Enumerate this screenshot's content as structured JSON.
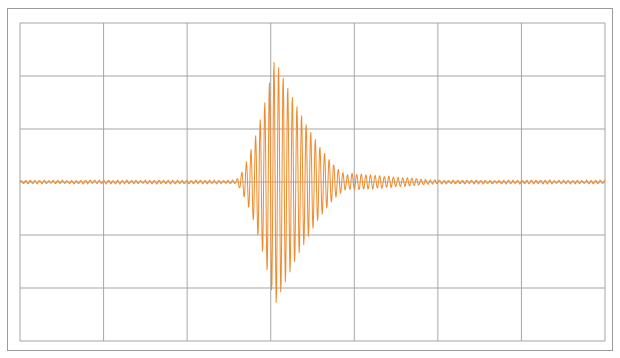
{
  "chart_data": {
    "type": "line",
    "title": "",
    "xlabel": "",
    "ylabel": "",
    "xlim": [
      0,
      7
    ],
    "ylim": [
      -3,
      3
    ],
    "grid": true,
    "x_gridlines": [
      0,
      1,
      2,
      3,
      4,
      5,
      6,
      7
    ],
    "y_gridlines": [
      -3,
      -2,
      -1,
      0,
      1,
      2,
      3
    ],
    "series": [
      {
        "color": "#f08a2c",
        "description_values": {
          "baseline_noise_amplitude": 0.03,
          "burst_onset_x": 2.55,
          "burst_peak_x": 3.05,
          "burst_peak_amplitude": 2.35,
          "burst_decay_end_x": 3.95,
          "tail_end_x": 5.0,
          "oscillation_period": 0.055
        }
      }
    ]
  },
  "colors": {
    "grid": "#a6a6a6",
    "frame": "#9b9b9b",
    "series": "#f08a2c",
    "background": "#ffffff"
  }
}
